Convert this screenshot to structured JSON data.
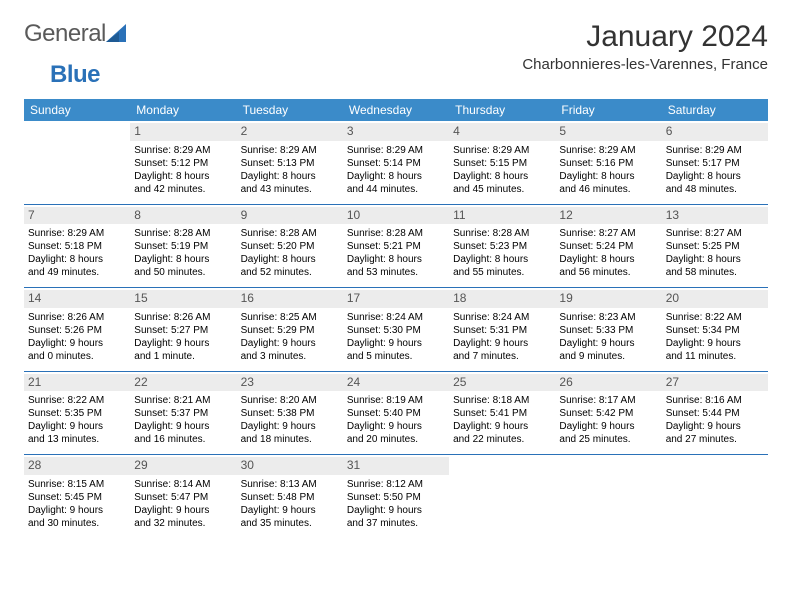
{
  "logo": {
    "general": "General",
    "blue": "Blue"
  },
  "title": "January 2024",
  "location": "Charbonnieres-les-Varennes, France",
  "colors": {
    "header_bg": "#3b8bc9",
    "header_text": "#ffffff",
    "separator": "#2a71b8",
    "daynum_bg": "#ececec",
    "daynum_color": "#555555",
    "cell_text": "#000000",
    "page_bg": "#ffffff",
    "logo_general": "#5a5a5a",
    "logo_blue": "#2a71b8"
  },
  "weekdays": [
    "Sunday",
    "Monday",
    "Tuesday",
    "Wednesday",
    "Thursday",
    "Friday",
    "Saturday"
  ],
  "weeks": [
    [
      null,
      {
        "n": "1",
        "sr": "Sunrise: 8:29 AM",
        "ss": "Sunset: 5:12 PM",
        "d1": "Daylight: 8 hours",
        "d2": "and 42 minutes."
      },
      {
        "n": "2",
        "sr": "Sunrise: 8:29 AM",
        "ss": "Sunset: 5:13 PM",
        "d1": "Daylight: 8 hours",
        "d2": "and 43 minutes."
      },
      {
        "n": "3",
        "sr": "Sunrise: 8:29 AM",
        "ss": "Sunset: 5:14 PM",
        "d1": "Daylight: 8 hours",
        "d2": "and 44 minutes."
      },
      {
        "n": "4",
        "sr": "Sunrise: 8:29 AM",
        "ss": "Sunset: 5:15 PM",
        "d1": "Daylight: 8 hours",
        "d2": "and 45 minutes."
      },
      {
        "n": "5",
        "sr": "Sunrise: 8:29 AM",
        "ss": "Sunset: 5:16 PM",
        "d1": "Daylight: 8 hours",
        "d2": "and 46 minutes."
      },
      {
        "n": "6",
        "sr": "Sunrise: 8:29 AM",
        "ss": "Sunset: 5:17 PM",
        "d1": "Daylight: 8 hours",
        "d2": "and 48 minutes."
      }
    ],
    [
      {
        "n": "7",
        "sr": "Sunrise: 8:29 AM",
        "ss": "Sunset: 5:18 PM",
        "d1": "Daylight: 8 hours",
        "d2": "and 49 minutes."
      },
      {
        "n": "8",
        "sr": "Sunrise: 8:28 AM",
        "ss": "Sunset: 5:19 PM",
        "d1": "Daylight: 8 hours",
        "d2": "and 50 minutes."
      },
      {
        "n": "9",
        "sr": "Sunrise: 8:28 AM",
        "ss": "Sunset: 5:20 PM",
        "d1": "Daylight: 8 hours",
        "d2": "and 52 minutes."
      },
      {
        "n": "10",
        "sr": "Sunrise: 8:28 AM",
        "ss": "Sunset: 5:21 PM",
        "d1": "Daylight: 8 hours",
        "d2": "and 53 minutes."
      },
      {
        "n": "11",
        "sr": "Sunrise: 8:28 AM",
        "ss": "Sunset: 5:23 PM",
        "d1": "Daylight: 8 hours",
        "d2": "and 55 minutes."
      },
      {
        "n": "12",
        "sr": "Sunrise: 8:27 AM",
        "ss": "Sunset: 5:24 PM",
        "d1": "Daylight: 8 hours",
        "d2": "and 56 minutes."
      },
      {
        "n": "13",
        "sr": "Sunrise: 8:27 AM",
        "ss": "Sunset: 5:25 PM",
        "d1": "Daylight: 8 hours",
        "d2": "and 58 minutes."
      }
    ],
    [
      {
        "n": "14",
        "sr": "Sunrise: 8:26 AM",
        "ss": "Sunset: 5:26 PM",
        "d1": "Daylight: 9 hours",
        "d2": "and 0 minutes."
      },
      {
        "n": "15",
        "sr": "Sunrise: 8:26 AM",
        "ss": "Sunset: 5:27 PM",
        "d1": "Daylight: 9 hours",
        "d2": "and 1 minute."
      },
      {
        "n": "16",
        "sr": "Sunrise: 8:25 AM",
        "ss": "Sunset: 5:29 PM",
        "d1": "Daylight: 9 hours",
        "d2": "and 3 minutes."
      },
      {
        "n": "17",
        "sr": "Sunrise: 8:24 AM",
        "ss": "Sunset: 5:30 PM",
        "d1": "Daylight: 9 hours",
        "d2": "and 5 minutes."
      },
      {
        "n": "18",
        "sr": "Sunrise: 8:24 AM",
        "ss": "Sunset: 5:31 PM",
        "d1": "Daylight: 9 hours",
        "d2": "and 7 minutes."
      },
      {
        "n": "19",
        "sr": "Sunrise: 8:23 AM",
        "ss": "Sunset: 5:33 PM",
        "d1": "Daylight: 9 hours",
        "d2": "and 9 minutes."
      },
      {
        "n": "20",
        "sr": "Sunrise: 8:22 AM",
        "ss": "Sunset: 5:34 PM",
        "d1": "Daylight: 9 hours",
        "d2": "and 11 minutes."
      }
    ],
    [
      {
        "n": "21",
        "sr": "Sunrise: 8:22 AM",
        "ss": "Sunset: 5:35 PM",
        "d1": "Daylight: 9 hours",
        "d2": "and 13 minutes."
      },
      {
        "n": "22",
        "sr": "Sunrise: 8:21 AM",
        "ss": "Sunset: 5:37 PM",
        "d1": "Daylight: 9 hours",
        "d2": "and 16 minutes."
      },
      {
        "n": "23",
        "sr": "Sunrise: 8:20 AM",
        "ss": "Sunset: 5:38 PM",
        "d1": "Daylight: 9 hours",
        "d2": "and 18 minutes."
      },
      {
        "n": "24",
        "sr": "Sunrise: 8:19 AM",
        "ss": "Sunset: 5:40 PM",
        "d1": "Daylight: 9 hours",
        "d2": "and 20 minutes."
      },
      {
        "n": "25",
        "sr": "Sunrise: 8:18 AM",
        "ss": "Sunset: 5:41 PM",
        "d1": "Daylight: 9 hours",
        "d2": "and 22 minutes."
      },
      {
        "n": "26",
        "sr": "Sunrise: 8:17 AM",
        "ss": "Sunset: 5:42 PM",
        "d1": "Daylight: 9 hours",
        "d2": "and 25 minutes."
      },
      {
        "n": "27",
        "sr": "Sunrise: 8:16 AM",
        "ss": "Sunset: 5:44 PM",
        "d1": "Daylight: 9 hours",
        "d2": "and 27 minutes."
      }
    ],
    [
      {
        "n": "28",
        "sr": "Sunrise: 8:15 AM",
        "ss": "Sunset: 5:45 PM",
        "d1": "Daylight: 9 hours",
        "d2": "and 30 minutes."
      },
      {
        "n": "29",
        "sr": "Sunrise: 8:14 AM",
        "ss": "Sunset: 5:47 PM",
        "d1": "Daylight: 9 hours",
        "d2": "and 32 minutes."
      },
      {
        "n": "30",
        "sr": "Sunrise: 8:13 AM",
        "ss": "Sunset: 5:48 PM",
        "d1": "Daylight: 9 hours",
        "d2": "and 35 minutes."
      },
      {
        "n": "31",
        "sr": "Sunrise: 8:12 AM",
        "ss": "Sunset: 5:50 PM",
        "d1": "Daylight: 9 hours",
        "d2": "and 37 minutes."
      },
      null,
      null,
      null
    ]
  ]
}
